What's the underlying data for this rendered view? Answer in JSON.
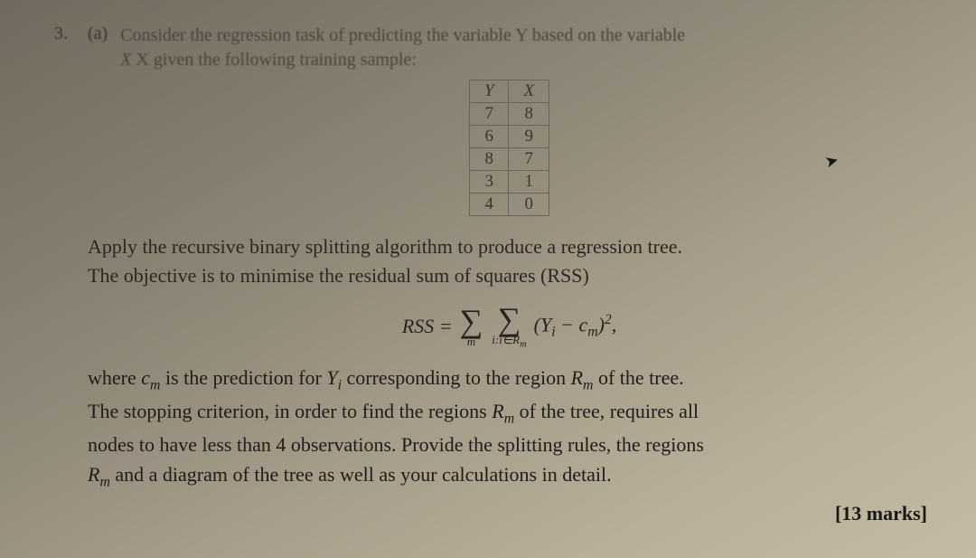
{
  "question_number": "3.",
  "part_label": "(a)",
  "prompt_line1": "Consider the regression task of predicting the variable Y based on the variable",
  "prompt_line2": "X given the following training sample:",
  "table": {
    "headers": [
      "Y",
      "X"
    ],
    "rows": [
      [
        "7",
        "8"
      ],
      [
        "6",
        "9"
      ],
      [
        "8",
        "7"
      ],
      [
        "3",
        "1"
      ],
      [
        "4",
        "0"
      ]
    ],
    "border_color": "#6a6458"
  },
  "para1_l1": "Apply the recursive binary splitting algorithm to produce a regression tree.",
  "para1_l2": "The objective is to minimise the residual sum of squares (RSS)",
  "formula": {
    "lhs": "RSS =",
    "sum1_sub": "m",
    "sum2_sub": "i:i∈R",
    "sum2_sub_m": "m",
    "inner_open": "(Y",
    "inner_i": "i",
    "inner_minus": " − c",
    "inner_m": "m",
    "inner_close": ")",
    "power": "2",
    "tail": ","
  },
  "para2_l1_a": "where ",
  "para2_l1_cm": "c",
  "para2_l1_cm_sub": "m",
  "para2_l1_b": " is the prediction for ",
  "para2_l1_yi": "Y",
  "para2_l1_yi_sub": "i",
  "para2_l1_c": " corresponding to the region ",
  "para2_l1_rm": "R",
  "para2_l1_rm_sub": "m",
  "para2_l1_d": " of the tree.",
  "para2_l2_a": "The stopping criterion, in order to find the regions ",
  "para2_l2_rm": "R",
  "para2_l2_rm_sub": "m",
  "para2_l2_b": " of the tree, requires all",
  "para2_l3": "nodes to have less than 4 observations. Provide the splitting rules, the regions",
  "para2_l4_rm": "R",
  "para2_l4_rm_sub": "m",
  "para2_l4": " and a diagram of the tree as well as your calculations in detail.",
  "marks": "[13 marks]",
  "colors": {
    "bg_top": "#706a5e",
    "bg_bottom": "#c4bba5",
    "text_faded": "#4a463d",
    "text_strong": "#1f1d19"
  }
}
